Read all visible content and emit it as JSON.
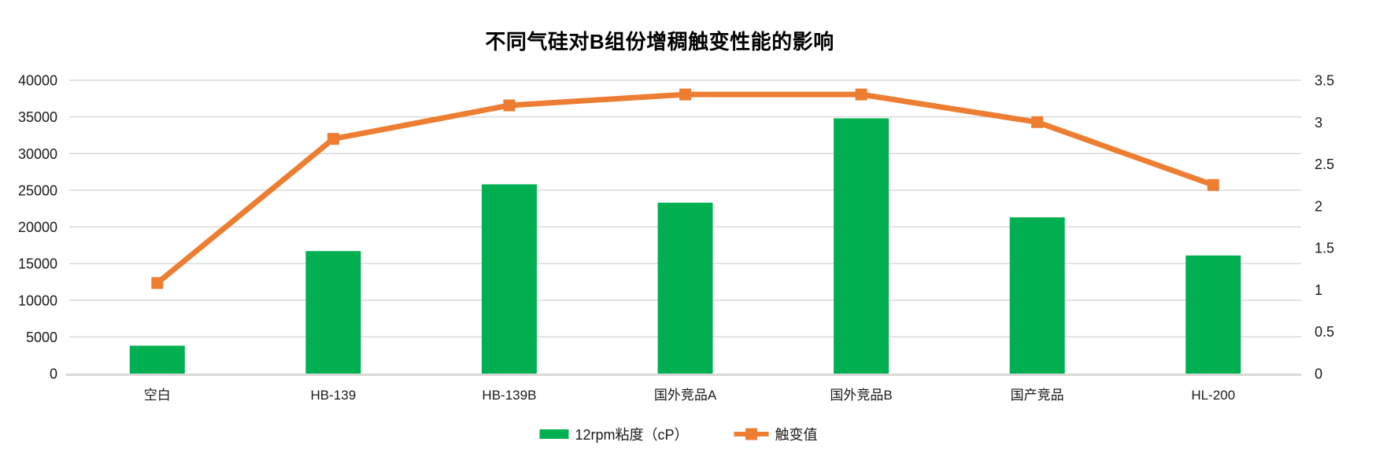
{
  "title": "不同气硅对B组份增稠触变性能的影响",
  "chart_data": {
    "type": "combo",
    "title": "不同气硅对B组份增稠触变性能的影响",
    "categories": [
      "空白",
      "HB-139",
      "HB-139B",
      "国外竞品A",
      "国外竞品B",
      "国产竞品",
      "HL-200"
    ],
    "series": [
      {
        "name": "12rpm粘度（cP）",
        "type": "bar",
        "axis": "left",
        "color": "#00B050",
        "values": [
          3800,
          16700,
          25800,
          23300,
          34800,
          21300,
          16100
        ]
      },
      {
        "name": "触变值",
        "type": "line",
        "axis": "right",
        "color": "#ED7D31",
        "values": [
          1.08,
          2.8,
          3.2,
          3.33,
          3.33,
          3.0,
          2.25
        ]
      }
    ],
    "left_axis": {
      "min": 0,
      "max": 40000,
      "step": 5000,
      "ticks": [
        "0",
        "5000",
        "10000",
        "15000",
        "20000",
        "25000",
        "30000",
        "35000",
        "40000"
      ]
    },
    "right_axis": {
      "min": 0,
      "max": 3.5,
      "step": 0.5,
      "ticks": [
        "0",
        "0.5",
        "1",
        "1.5",
        "2",
        "2.5",
        "3",
        "3.5"
      ]
    },
    "grid": true,
    "legend_position": "bottom",
    "xlabel": "",
    "ylabel": ""
  },
  "legend": {
    "items": [
      {
        "label": "12rpm粘度（cP）",
        "color": "#00B050",
        "type": "bar"
      },
      {
        "label": "触变值",
        "color": "#ED7D31",
        "type": "line"
      }
    ]
  },
  "colors": {
    "bar": "#00B050",
    "line": "#ED7D31",
    "grid": "#D9D9D9",
    "axis_line": "#D9D9D9",
    "text": "#1a1a1a",
    "background": "#FFFFFF"
  }
}
